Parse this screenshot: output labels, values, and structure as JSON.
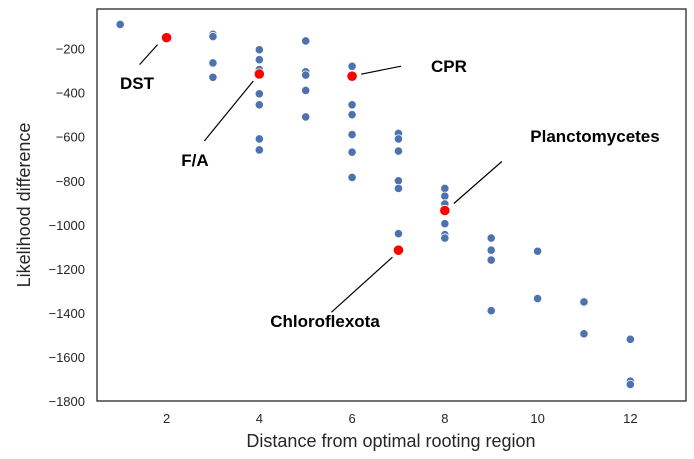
{
  "chart_data": {
    "type": "scatter",
    "title": "",
    "xlabel": "Distance from optimal rooting region",
    "ylabel": "Likelihood difference",
    "xlim": [
      0.5,
      13.2
    ],
    "ylim": [
      -1800,
      -20
    ],
    "xticks": [
      2,
      4,
      6,
      8,
      10,
      12
    ],
    "yticks": [
      -1800,
      -1600,
      -1400,
      -1200,
      -1000,
      -800,
      -600,
      -400,
      -200
    ],
    "grid": false,
    "colors": {
      "points": "#4c72b0",
      "highlight": "#ff0000",
      "text": "#000000",
      "axis": "#262626"
    },
    "series": [
      {
        "points": [
          [
            1,
            -90
          ],
          [
            3,
            -135
          ],
          [
            3,
            -145
          ],
          [
            3,
            -265
          ],
          [
            3,
            -330
          ],
          [
            4,
            -205
          ],
          [
            4,
            -250
          ],
          [
            4,
            -295
          ],
          [
            4,
            -405
          ],
          [
            4,
            -455
          ],
          [
            4,
            -610
          ],
          [
            4,
            -660
          ],
          [
            5,
            -165
          ],
          [
            5,
            -305
          ],
          [
            5,
            -320
          ],
          [
            5,
            -390
          ],
          [
            5,
            -510
          ],
          [
            6,
            -280
          ],
          [
            6,
            -455
          ],
          [
            6,
            -500
          ],
          [
            6,
            -590
          ],
          [
            6,
            -670
          ],
          [
            6,
            -785
          ],
          [
            7,
            -585
          ],
          [
            7,
            -610
          ],
          [
            7,
            -665
          ],
          [
            7,
            -800
          ],
          [
            7,
            -835
          ],
          [
            7,
            -1040
          ],
          [
            8,
            -835
          ],
          [
            8,
            -870
          ],
          [
            8,
            -905
          ],
          [
            8,
            -995
          ],
          [
            8,
            -1045
          ],
          [
            8,
            -1060
          ],
          [
            9,
            -1060
          ],
          [
            9,
            -1115
          ],
          [
            9,
            -1160
          ],
          [
            9,
            -1390
          ],
          [
            10,
            -1120
          ],
          [
            10,
            -1335
          ],
          [
            11,
            -1350
          ],
          [
            11,
            -1495
          ],
          [
            12,
            -1520
          ],
          [
            12,
            -1710
          ],
          [
            12,
            -1725
          ]
        ]
      },
      {
        "points": [
          {
            "x": 2,
            "y": -150,
            "label": "DST"
          },
          {
            "x": 4,
            "y": -315,
            "label": "F/A"
          },
          {
            "x": 6,
            "y": -325,
            "label": "CPR"
          },
          {
            "x": 8,
            "y": -935,
            "label": "Planctomycetes"
          },
          {
            "x": 7,
            "y": -1115,
            "label": "Chloroflexota"
          }
        ]
      }
    ]
  }
}
